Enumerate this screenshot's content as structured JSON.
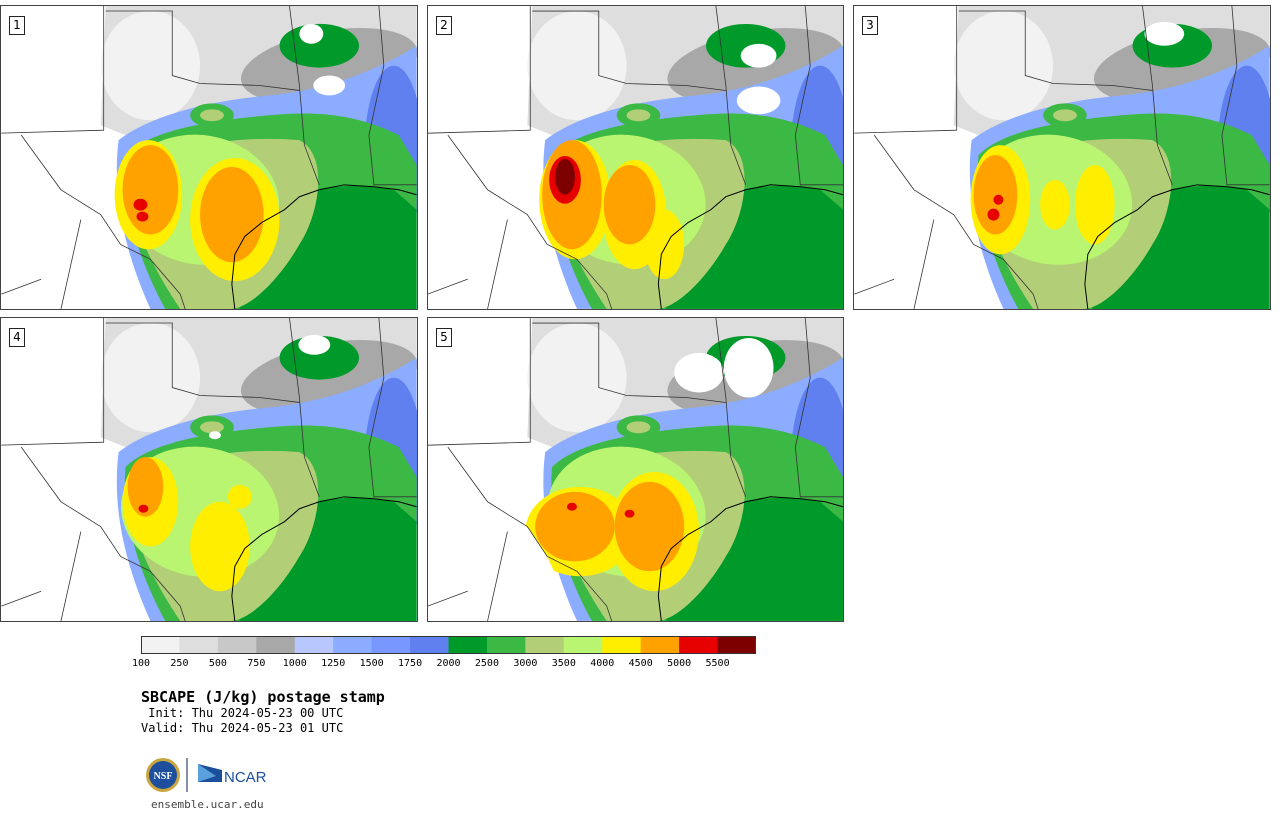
{
  "panels": [
    {
      "number": "1",
      "variant": 0
    },
    {
      "number": "2",
      "variant": 1
    },
    {
      "number": "3",
      "variant": 2
    },
    {
      "number": "4",
      "variant": 3
    },
    {
      "number": "5",
      "variant": 4
    }
  ],
  "colorbar": {
    "colors": [
      "#f2f2f2",
      "#dedede",
      "#c8c8c8",
      "#a8a8a8",
      "#b8c8ff",
      "#8cacff",
      "#7898ff",
      "#6080f0",
      "#009a2a",
      "#3cb844",
      "#b2cf78",
      "#b9f570",
      "#ffee00",
      "#ffa200",
      "#e60000",
      "#7d0000"
    ],
    "labels": [
      "100",
      "250",
      "500",
      "750",
      "1000",
      "1250",
      "1500",
      "1750",
      "2000",
      "2500",
      "3000",
      "3500",
      "4000",
      "4500",
      "5000",
      "5500"
    ]
  },
  "title": "SBCAPE (J/kg) postage stamp",
  "init": " Init: Thu 2024-05-23 00 UTC",
  "valid": "Valid: Thu 2024-05-23 01 UTC",
  "logos": {
    "nsf": "NSF",
    "ncar": "NCAR"
  },
  "website": "ensemble.ucar.edu"
}
